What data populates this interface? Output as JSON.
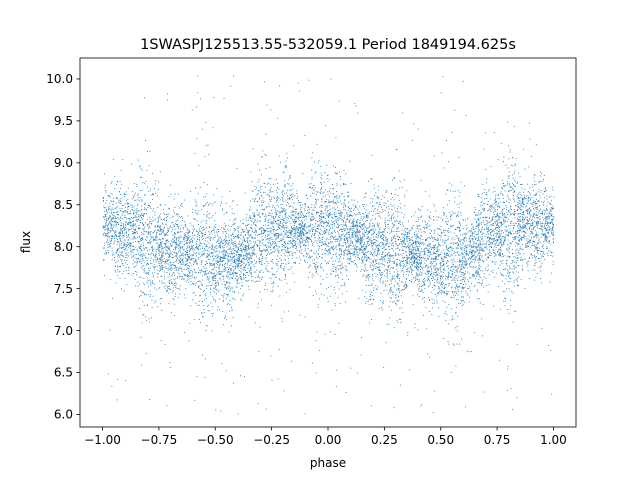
{
  "chart_data": {
    "type": "scatter",
    "title": "1SWASPJ125513.55-532059.1 Period 1849194.625s",
    "xlabel": "phase",
    "ylabel": "flux",
    "xlim": [
      -1.1,
      1.1
    ],
    "ylim": [
      5.85,
      10.25
    ],
    "xticks": [
      -1.0,
      -0.75,
      -0.5,
      -0.25,
      0.0,
      0.25,
      0.5,
      0.75,
      1.0
    ],
    "xtick_labels": [
      "−1.00",
      "−0.75",
      "−0.50",
      "−0.25",
      "0.00",
      "0.25",
      "0.50",
      "0.75",
      "1.00"
    ],
    "yticks": [
      6.0,
      6.5,
      7.0,
      7.5,
      8.0,
      8.5,
      9.0,
      9.5,
      10.0
    ],
    "ytick_labels": [
      "6.0",
      "6.5",
      "7.0",
      "7.5",
      "8.0",
      "8.5",
      "9.0",
      "9.5",
      "10.0"
    ],
    "grid": false,
    "marker_color": "#1f77b4",
    "series": [
      {
        "x_range": [
          -1.0,
          1.0
        ],
        "mean_flux_profile": {
          "phase": [
            -1.0,
            -0.9,
            -0.8,
            -0.7,
            -0.6,
            -0.5,
            -0.4,
            -0.3,
            -0.2,
            -0.1,
            0.0,
            0.1,
            0.2,
            0.3,
            0.4,
            0.5,
            0.6,
            0.7,
            0.8,
            0.9,
            1.0
          ],
          "flux": [
            8.25,
            8.2,
            8.05,
            7.95,
            7.9,
            7.85,
            7.85,
            8.15,
            8.25,
            8.2,
            8.25,
            8.15,
            8.0,
            7.95,
            7.9,
            7.85,
            7.85,
            8.15,
            8.25,
            8.25,
            8.25
          ]
        },
        "core_spread": 0.3,
        "outlier_range": [
          6.0,
          10.05
        ]
      }
    ]
  }
}
